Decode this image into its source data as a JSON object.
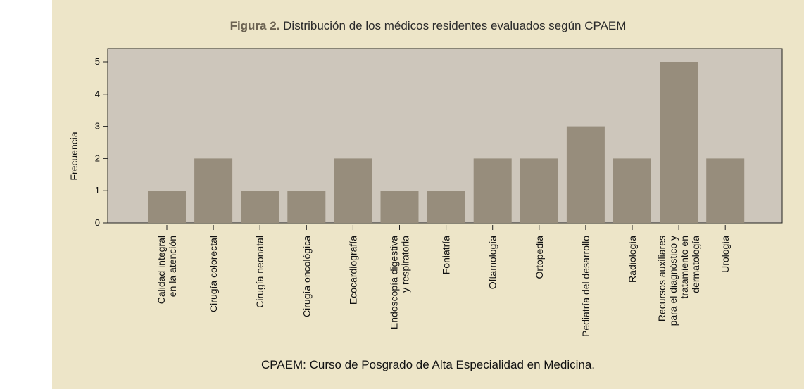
{
  "figure": {
    "label": "Figura 2.",
    "title": "Distribución de los médicos residentes evaluados según CPAEM",
    "caption": "CPAEM: Curso de Posgrado de Alta Especialidad en Medicina."
  },
  "colors": {
    "panel_background": "#ede5c8",
    "plot_background": "#cdc6bb",
    "bar_fill": "#978d7c"
  },
  "chart_data": {
    "type": "bar",
    "title": "Distribución de los médicos residentes evaluados según CPAEM",
    "xlabel": "",
    "ylabel": "Frecuencia",
    "ylim": [
      0,
      5.5
    ],
    "yticks": [
      0,
      1,
      2,
      3,
      4,
      5
    ],
    "grid": false,
    "categories": [
      [
        "Calidad integral",
        "en la atención"
      ],
      [
        "Cirugía colorectal"
      ],
      [
        "Cirugía neonatal"
      ],
      [
        "Cirugía oncológica"
      ],
      [
        "Ecocardiografía"
      ],
      [
        "Endoscopía digestiva",
        "y respiratoria"
      ],
      [
        "Foniatría"
      ],
      [
        "Oftamología"
      ],
      [
        "Ortopedia"
      ],
      [
        "Pediatría del desarrollo"
      ],
      [
        "Radiología"
      ],
      [
        "Recursos auxiliares",
        "para el diagnóstico y",
        "tratamiento en",
        "dermatología"
      ],
      [
        "Urología"
      ]
    ],
    "values": [
      1,
      2,
      1,
      1,
      2,
      1,
      1,
      2,
      2,
      3,
      2,
      5,
      2
    ]
  }
}
